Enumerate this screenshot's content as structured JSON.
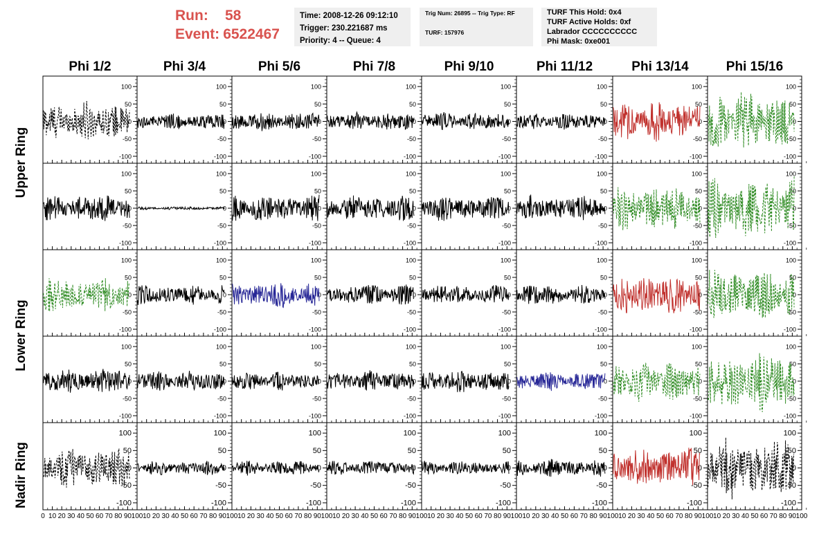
{
  "header": {
    "run_label": "Run:",
    "run_value": "58",
    "event_label": "Event:",
    "event_value": "6522467"
  },
  "info_box_1": {
    "time": "Time: 2008-12-26 09:12:10",
    "trigger": "Trigger: 230.221687 ms",
    "priority": "Priority: 4 -- Queue: 4"
  },
  "info_box_2": {
    "trig": "Trig Num: 26895 -- Trig Type: RF",
    "turf": "TURF: 157976"
  },
  "info_box_3": {
    "hold": "TURF This Hold: 0x4",
    "active": "TURF Active Holds: 0xf",
    "labrador": "Labrador CCCCCCCCCC",
    "phimask": "Phi Mask: 0xe001"
  },
  "columns": [
    "Phi 1/2",
    "Phi 3/4",
    "Phi 5/6",
    "Phi 7/8",
    "Phi 9/10",
    "Phi 11/12",
    "Phi 13/14",
    "Phi 15/16"
  ],
  "row_labels": {
    "upper": "Upper Ring",
    "lower": "Lower Ring",
    "nadir": "Nadir Ring"
  },
  "colors": {
    "black": "#000000",
    "red": "#c0302c",
    "green": "#2e8b22",
    "blue": "#262696",
    "header_red": "#d9534f",
    "box_bg": "#efefef"
  },
  "chart_data": {
    "type": "line",
    "description_rows": [
      "Upper Ring 1",
      "Upper Ring 2",
      "Lower Ring 1",
      "Lower Ring 2",
      "Nadir Ring"
    ],
    "xlim": [
      0,
      100
    ],
    "ylim": [
      -120,
      130
    ],
    "y_ticks": [
      -100,
      -50,
      0,
      50,
      100
    ],
    "y_tick_labels": [
      "-100",
      "-50",
      "0",
      "50",
      "100"
    ],
    "x_ticks": [
      0,
      10,
      20,
      30,
      40,
      50,
      60,
      70,
      80,
      90,
      100
    ],
    "x_tick_labels": [
      "0",
      "10",
      "20",
      "30",
      "40",
      "50",
      "60",
      "70",
      "80",
      "90",
      "100"
    ],
    "grid": false,
    "waveforms": [
      [
        {
          "style": "dashed",
          "color": "black",
          "amp": 38
        },
        {
          "style": "solid",
          "color": "black",
          "amp": 16
        },
        {
          "style": "solid",
          "color": "black",
          "amp": 18
        },
        {
          "style": "solid",
          "color": "black",
          "amp": 18
        },
        {
          "style": "solid",
          "color": "black",
          "amp": 18
        },
        {
          "style": "solid",
          "color": "black",
          "amp": 16
        },
        {
          "style": "solid",
          "color": "red",
          "amp": 40
        },
        {
          "style": "dashed",
          "color": "green",
          "amp": 60
        }
      ],
      [
        {
          "style": "solid",
          "color": "black",
          "amp": 28
        },
        {
          "style": "solid",
          "color": "black",
          "amp": 3
        },
        {
          "style": "solid",
          "color": "black",
          "amp": 28
        },
        {
          "style": "solid",
          "color": "black",
          "amp": 25
        },
        {
          "style": "solid",
          "color": "black",
          "amp": 25
        },
        {
          "style": "solid",
          "color": "black",
          "amp": 25
        },
        {
          "style": "dashed",
          "color": "green",
          "amp": 45
        },
        {
          "style": "dashed",
          "color": "green",
          "amp": 60
        }
      ],
      [
        {
          "style": "dashed",
          "color": "green",
          "amp": 35
        },
        {
          "style": "solid",
          "color": "black",
          "amp": 20
        },
        {
          "style": "solid",
          "color": "blue",
          "amp": 25
        },
        {
          "style": "solid",
          "color": "black",
          "amp": 20
        },
        {
          "style": "solid",
          "color": "black",
          "amp": 20
        },
        {
          "style": "solid",
          "color": "black",
          "amp": 20
        },
        {
          "style": "solid",
          "color": "red",
          "amp": 40
        },
        {
          "style": "dashed",
          "color": "green",
          "amp": 50
        }
      ],
      [
        {
          "style": "solid",
          "color": "black",
          "amp": 25
        },
        {
          "style": "solid",
          "color": "black",
          "amp": 20
        },
        {
          "style": "solid",
          "color": "black",
          "amp": 18
        },
        {
          "style": "solid",
          "color": "black",
          "amp": 20
        },
        {
          "style": "solid",
          "color": "black",
          "amp": 22
        },
        {
          "style": "solid",
          "color": "blue",
          "amp": 18
        },
        {
          "style": "dashed",
          "color": "green",
          "amp": 40
        },
        {
          "style": "dashed",
          "color": "green",
          "amp": 60
        }
      ],
      [
        {
          "style": "dashed",
          "color": "black",
          "amp": 40
        },
        {
          "style": "solid",
          "color": "black",
          "amp": 14
        },
        {
          "style": "solid",
          "color": "black",
          "amp": 14
        },
        {
          "style": "solid",
          "color": "black",
          "amp": 14
        },
        {
          "style": "solid",
          "color": "black",
          "amp": 14
        },
        {
          "style": "solid",
          "color": "black",
          "amp": 18
        },
        {
          "style": "solid",
          "color": "red",
          "amp": 40
        },
        {
          "style": "dashed",
          "color": "black",
          "amp": 60
        }
      ]
    ]
  }
}
